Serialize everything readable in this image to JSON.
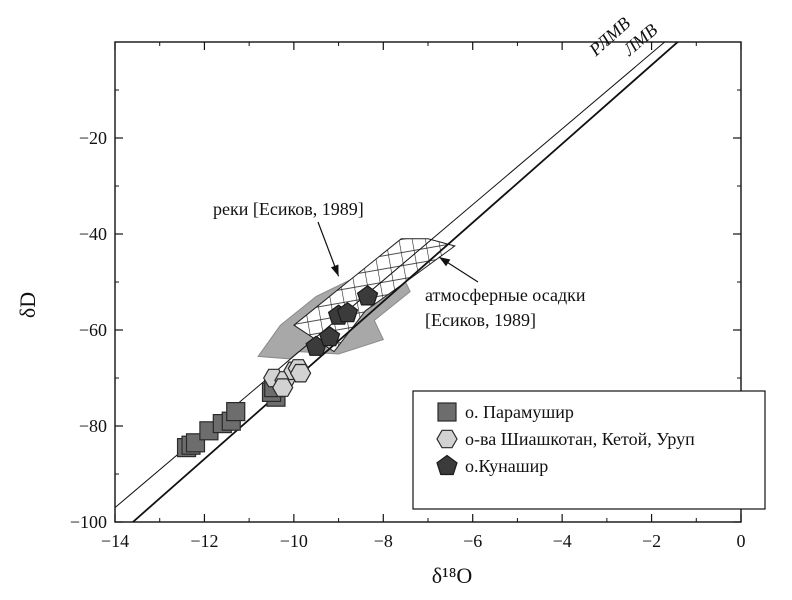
{
  "chart_data": {
    "type": "scatter",
    "xlabel": "δ¹⁸O",
    "ylabel": "δD",
    "xlim": [
      -14,
      0
    ],
    "ylim": [
      -100,
      0
    ],
    "x_ticks": [
      -14,
      -12,
      -10,
      -8,
      -6,
      -4,
      -2,
      0
    ],
    "y_ticks": [
      -100,
      -80,
      -60,
      -40,
      -20
    ],
    "x_tick_labels": [
      "−14",
      "−12",
      "−10",
      "−8",
      "−6",
      "−4",
      "−2",
      "0"
    ],
    "y_tick_labels": [
      "−100",
      "−80",
      "−60",
      "−40",
      "−20"
    ],
    "grid": false,
    "lines": [
      {
        "label": "РЛМВ",
        "points": [
          [
            -14,
            -97
          ],
          [
            -1.2,
            4
          ]
        ]
      },
      {
        "label": "ЛМВ",
        "points": [
          [
            -13.6,
            -100
          ],
          [
            -1.05,
            3
          ]
        ]
      }
    ],
    "regions": [
      {
        "name": "реки",
        "fill": "#a8a8a8",
        "points": [
          [
            -10.8,
            -65.5
          ],
          [
            -10.3,
            -59
          ],
          [
            -9.5,
            -53
          ],
          [
            -8.5,
            -48.5
          ],
          [
            -7.6,
            -48
          ],
          [
            -7.4,
            -52
          ],
          [
            -8.2,
            -58
          ],
          [
            -8.0,
            -62
          ],
          [
            -9.0,
            -65
          ],
          [
            -9.9,
            -64.5
          ],
          [
            -10.1,
            -66
          ]
        ]
      },
      {
        "name": "атмосферные осадки",
        "fill": "hatch",
        "points": [
          [
            -10.0,
            -59
          ],
          [
            -7.6,
            -41
          ],
          [
            -7.0,
            -41
          ],
          [
            -6.4,
            -42.5
          ],
          [
            -7.5,
            -50
          ],
          [
            -8.4,
            -56
          ],
          [
            -9.1,
            -64.5
          ]
        ]
      }
    ],
    "annotations": [
      {
        "text": "реки [Есиков, 1989]",
        "target": [
          -9.0,
          -48.8
        ]
      },
      {
        "text_lines": [
          "атмосферные осадки",
          "[Есиков, 1989]"
        ],
        "target": [
          -6.8,
          -45
        ]
      }
    ],
    "legend_position": "bottom-right",
    "series": [
      {
        "name": "о. Парамушир",
        "marker": "square",
        "color": "#6d6d6d",
        "points": [
          [
            -12.4,
            -84.5
          ],
          [
            -12.3,
            -84
          ],
          [
            -12.2,
            -83.5
          ],
          [
            -11.9,
            -81
          ],
          [
            -11.6,
            -79.5
          ],
          [
            -11.4,
            -79
          ],
          [
            -11.3,
            -77
          ],
          [
            -10.4,
            -74
          ],
          [
            -10.5,
            -73
          ],
          [
            -10.45,
            -72
          ]
        ]
      },
      {
        "name": "о-ва Шиашкотан, Кетой, Уруп",
        "marker": "hexagon",
        "color": "#d2d2d2",
        "points": [
          [
            -10.45,
            -70
          ],
          [
            -10.2,
            -70.5
          ],
          [
            -10.25,
            -72
          ],
          [
            -10.0,
            -68.5
          ],
          [
            -9.9,
            -68
          ],
          [
            -9.85,
            -69
          ]
        ]
      },
      {
        "name": "о.Кунашир",
        "marker": "pentagon",
        "color": "#3b3b3b",
        "points": [
          [
            -9.5,
            -63.5
          ],
          [
            -9.2,
            -61.5
          ],
          [
            -9.0,
            -57
          ],
          [
            -8.8,
            -56.5
          ],
          [
            -8.35,
            -53
          ]
        ]
      }
    ]
  }
}
